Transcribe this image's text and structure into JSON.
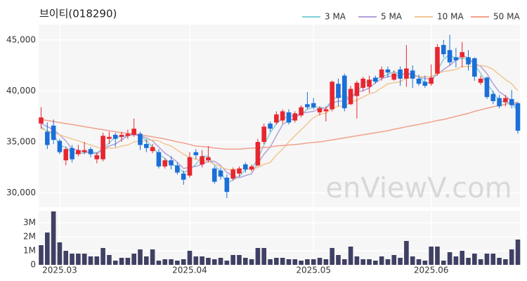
{
  "chart_data": {
    "type": "candlestick",
    "title": "브이티(018290)",
    "watermark": "enViewV.com",
    "up_color": "#e8262f",
    "down_color": "#1a6fd8",
    "grid": true,
    "legend": "top-right",
    "categories": [
      null,
      null,
      null,
      "2025.03",
      null,
      null,
      null,
      null,
      null,
      null,
      null,
      null,
      null,
      null,
      null,
      null,
      null,
      null,
      null,
      null,
      null,
      null,
      null,
      null,
      "2025.04",
      null,
      null,
      null,
      null,
      null,
      null,
      null,
      null,
      null,
      null,
      null,
      null,
      null,
      null,
      null,
      null,
      null,
      null,
      null,
      "2025.05",
      null,
      null,
      null,
      null,
      null,
      null,
      null,
      null,
      null,
      null,
      null,
      null,
      null,
      null,
      null,
      null,
      null,
      null,
      "2025.06",
      null,
      null,
      null,
      null,
      null,
      null,
      null,
      null,
      null,
      null,
      null,
      null,
      null,
      null
    ],
    "open": [
      36800,
      36000,
      36600,
      35100,
      33200,
      34400,
      33800,
      34000,
      34300,
      33300,
      33300,
      35300,
      35700,
      35500,
      35600,
      35700,
      35800,
      34800,
      34100,
      34000,
      32600,
      33200,
      32700,
      31900,
      31700,
      34000,
      32800,
      33200,
      32400,
      32200,
      31500,
      31400,
      31900,
      32800,
      32300,
      32700,
      35000,
      36800,
      36900,
      37100,
      37900,
      37100,
      37600,
      38700,
      38800,
      37900,
      38000,
      38200,
      40700,
      41500,
      38700,
      39500,
      40300,
      40400,
      41300,
      41300,
      42100,
      41100,
      42100,
      41200,
      42000,
      41200,
      40900,
      40700,
      41700,
      44500,
      44000,
      43300,
      43300,
      43300,
      43200,
      40800,
      41300,
      39700,
      39300,
      38900,
      39200,
      38800
    ],
    "high": [
      38400,
      36900,
      37200,
      35300,
      34500,
      34700,
      34700,
      35000,
      34500,
      34000,
      35900,
      36000,
      35900,
      36000,
      36200,
      37300,
      36000,
      35300,
      34800,
      34300,
      33400,
      33600,
      33000,
      32200,
      34000,
      34300,
      34200,
      34600,
      32600,
      32500,
      31800,
      32500,
      32600,
      33000,
      32800,
      35300,
      36800,
      37000,
      38000,
      38200,
      38200,
      38000,
      38600,
      39900,
      39300,
      38500,
      38500,
      41000,
      41200,
      41700,
      40500,
      41000,
      41400,
      41500,
      41500,
      42400,
      42400,
      42000,
      42400,
      44500,
      42500,
      41600,
      41500,
      42600,
      44600,
      45000,
      45500,
      44200,
      44800,
      44000,
      43300,
      41500,
      41400,
      40000,
      39600,
      39600,
      40100,
      38900
    ],
    "low": [
      36300,
      34300,
      34800,
      33800,
      32700,
      33000,
      33600,
      33800,
      33500,
      32900,
      33100,
      34800,
      34500,
      35000,
      35300,
      35500,
      34200,
      34000,
      33900,
      32400,
      32400,
      32300,
      31800,
      30800,
      31500,
      33300,
      32500,
      33000,
      30900,
      31300,
      29500,
      31200,
      31600,
      32000,
      32100,
      32600,
      34800,
      36000,
      36700,
      36800,
      36700,
      36900,
      37400,
      38200,
      38200,
      37600,
      37000,
      38000,
      38500,
      38000,
      38600,
      37300,
      40000,
      39800,
      40700,
      41000,
      41300,
      41000,
      40500,
      40400,
      40300,
      40500,
      40300,
      40500,
      41500,
      43300,
      42500,
      42300,
      42300,
      42000,
      41000,
      40600,
      39200,
      38700,
      38300,
      38500,
      38300,
      35800
    ],
    "close": [
      37400,
      34700,
      35200,
      34000,
      34300,
      33300,
      34200,
      34200,
      33800,
      33700,
      35600,
      35500,
      35300,
      35700,
      35800,
      36300,
      34700,
      34400,
      34500,
      32600,
      33200,
      32700,
      32000,
      31300,
      33500,
      33700,
      33600,
      33500,
      31100,
      31600,
      30100,
      32300,
      32400,
      32300,
      32600,
      35000,
      36500,
      36300,
      37700,
      38000,
      36900,
      37800,
      38400,
      38400,
      38400,
      38300,
      38200,
      40900,
      39300,
      38300,
      40200,
      40800,
      41200,
      41100,
      40900,
      42100,
      41800,
      41700,
      41200,
      42200,
      41200,
      40700,
      40500,
      41300,
      44300,
      43600,
      42800,
      43000,
      43800,
      42600,
      41400,
      41200,
      39400,
      39000,
      38500,
      39300,
      38600,
      36100
    ],
    "series": [
      {
        "name": "3 MA",
        "color": "#7fd1d6",
        "values": [
          36500,
          36000,
          35800,
          34600,
          34500,
          33900,
          33900,
          33900,
          34100,
          33900,
          34400,
          34900,
          35500,
          35500,
          35600,
          35900,
          35600,
          35100,
          34500,
          33800,
          33400,
          32800,
          32600,
          32000,
          32300,
          32800,
          33600,
          33600,
          32700,
          32100,
          30900,
          31300,
          31600,
          32300,
          32400,
          33300,
          34700,
          35900,
          36800,
          37300,
          37500,
          37600,
          37700,
          38200,
          38400,
          38400,
          38300,
          39100,
          39500,
          39500,
          39300,
          39800,
          40700,
          41000,
          41100,
          41400,
          41600,
          41900,
          41600,
          41700,
          41500,
          41400,
          40800,
          40800,
          42000,
          43100,
          43600,
          43100,
          43200,
          43100,
          42600,
          41700,
          40700,
          39900,
          39000,
          38900,
          38800,
          38000
        ]
      },
      {
        "name": "5 MA",
        "color": "#b4a0d8",
        "values": [
          36800,
          36500,
          36200,
          35700,
          35100,
          34300,
          34200,
          34000,
          34000,
          33800,
          34300,
          34600,
          34800,
          35200,
          35600,
          35700,
          35600,
          35400,
          35100,
          34500,
          33900,
          33500,
          33000,
          32400,
          32500,
          32600,
          32800,
          33100,
          33100,
          32700,
          32000,
          31700,
          31500,
          31700,
          31900,
          32900,
          33800,
          34500,
          35600,
          36700,
          37100,
          37300,
          37800,
          37900,
          38000,
          38300,
          38300,
          38800,
          39000,
          39000,
          39400,
          39900,
          40000,
          40300,
          40800,
          41200,
          41400,
          41500,
          41500,
          41800,
          41600,
          41400,
          41200,
          41200,
          41600,
          42100,
          42500,
          43000,
          43500,
          43200,
          42700,
          42400,
          41700,
          40700,
          39900,
          39500,
          39000,
          38300
        ]
      },
      {
        "name": "10 MA",
        "color": "#f3c592",
        "values": [
          36300,
          36100,
          35900,
          35700,
          35500,
          35300,
          35100,
          34900,
          34700,
          34500,
          34300,
          34400,
          34400,
          34600,
          34700,
          35000,
          35100,
          35100,
          35200,
          35100,
          34800,
          34600,
          34200,
          33800,
          33500,
          33300,
          33200,
          33100,
          32800,
          32600,
          32300,
          32300,
          32300,
          32400,
          32300,
          32500,
          32800,
          33000,
          33700,
          34300,
          35000,
          35600,
          36200,
          36800,
          37400,
          37700,
          37800,
          38300,
          38500,
          38500,
          38900,
          39100,
          39400,
          39700,
          39900,
          40300,
          40700,
          40800,
          40900,
          41300,
          41400,
          41400,
          41400,
          41400,
          41700,
          41900,
          42000,
          42100,
          42400,
          42400,
          42400,
          42500,
          42400,
          42100,
          41600,
          41100,
          40700,
          40000
        ]
      },
      {
        "name": "50 MA",
        "color": "#f2a08c",
        "values": [
          37200,
          37100,
          37000,
          36900,
          36800,
          36700,
          36600,
          36500,
          36400,
          36300,
          36200,
          36100,
          36000,
          35900,
          35850,
          35800,
          35700,
          35600,
          35500,
          35400,
          35300,
          35150,
          35000,
          34900,
          34750,
          34600,
          34550,
          34500,
          34400,
          34350,
          34300,
          34300,
          34300,
          34350,
          34400,
          34400,
          34450,
          34500,
          34600,
          34650,
          34700,
          34750,
          34800,
          34900,
          34950,
          35000,
          35100,
          35200,
          35300,
          35400,
          35500,
          35600,
          35700,
          35800,
          35900,
          36000,
          36100,
          36250,
          36350,
          36500,
          36600,
          36700,
          36850,
          36950,
          37100,
          37200,
          37350,
          37500,
          37650,
          37800,
          38000,
          38150,
          38300,
          38450,
          38550,
          38700,
          38800,
          38900
        ]
      }
    ],
    "ylim": [
      28600,
      46500
    ],
    "yticks": [
      {
        "value": 30000,
        "label": "30,000"
      },
      {
        "value": 35000,
        "label": "35,000"
      },
      {
        "value": 40000,
        "label": "40,000"
      },
      {
        "value": 45000,
        "label": "45,000"
      }
    ],
    "volume": {
      "color": "#3f4063",
      "ylim": [
        0,
        3850000
      ],
      "yticks": [
        0,
        {
          "value": 1000000,
          "label": "1M"
        },
        {
          "value": 2000000,
          "label": "2M"
        },
        {
          "value": 3000000,
          "label": "3M"
        }
      ],
      "values": [
        1400000,
        2300000,
        3800000,
        1600000,
        1000000,
        800000,
        800000,
        800000,
        600000,
        600000,
        1200000,
        700000,
        300000,
        500000,
        500000,
        800000,
        1100000,
        600000,
        1100000,
        300000,
        400000,
        400000,
        300000,
        400000,
        1000000,
        600000,
        600000,
        500000,
        400000,
        500000,
        300000,
        700000,
        700000,
        500000,
        400000,
        1200000,
        1200000,
        400000,
        500000,
        500000,
        400000,
        400000,
        300000,
        400000,
        400000,
        500000,
        400000,
        1200000,
        700000,
        400000,
        1300000,
        600000,
        400000,
        400000,
        300000,
        600000,
        400000,
        700000,
        500000,
        1700000,
        600000,
        400000,
        300000,
        1300000,
        1300000,
        300000,
        900000,
        600000,
        1000000,
        500000,
        800000,
        400000,
        800000,
        800000,
        500000,
        400000,
        1100000,
        1800000
      ]
    }
  }
}
